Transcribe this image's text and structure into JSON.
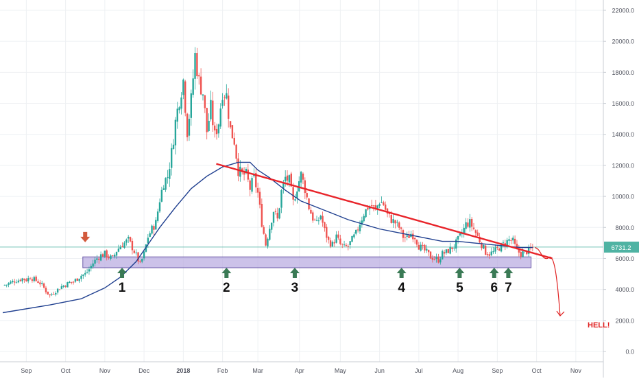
{
  "chart_data": {
    "type": "candlestick",
    "x_labels": [
      "Sep",
      "Oct",
      "Nov",
      "Dec",
      "2018",
      "Feb",
      "Mar",
      "Apr",
      "May",
      "Jun",
      "Jul",
      "Aug",
      "Sep",
      "Oct",
      "Nov"
    ],
    "y_ticks": [
      "0.0",
      "2000.0",
      "4000.0",
      "6000.0",
      "8000.0",
      "10000.0",
      "12000.0",
      "14000.0",
      "16000.0",
      "18000.0",
      "20000.0",
      "22000.0"
    ],
    "ylim": [
      0,
      22000
    ],
    "last_price_label": "6731.2",
    "last_price": 6731.2,
    "colors": {
      "up": "#26a69a",
      "down": "#ef5350",
      "moving_average": "#1f3f8f",
      "trendline": "#e8242a",
      "support_zone": "#b7a8e0",
      "support_zone_border": "#6a5aa8",
      "price_line": "#4fb3a3",
      "arrow_up": "#3a7a55",
      "arrow_down": "#d25a3c",
      "hell": "#e02020"
    },
    "closes": [
      [
        0.0,
        4280
      ],
      [
        0.5,
        4320
      ],
      [
        1,
        4450
      ],
      [
        1.5,
        4550
      ],
      [
        2,
        4600
      ],
      [
        2.5,
        4700
      ],
      [
        3,
        4620
      ],
      [
        3.5,
        4780
      ],
      [
        4,
        4650
      ],
      [
        4.5,
        4500
      ],
      [
        5,
        4300
      ],
      [
        5.5,
        3900
      ],
      [
        6,
        3600
      ],
      [
        6.5,
        3800
      ],
      [
        7,
        4000
      ],
      [
        7.5,
        4200
      ],
      [
        8,
        4300
      ],
      [
        8.5,
        4450
      ],
      [
        9,
        4500
      ],
      [
        9.5,
        4700
      ],
      [
        10,
        4900
      ],
      [
        10.5,
        5000
      ],
      [
        11,
        5300
      ],
      [
        11.5,
        5700
      ],
      [
        12,
        6000
      ],
      [
        12.5,
        6200
      ],
      [
        13,
        6300
      ],
      [
        13.5,
        6100
      ],
      [
        14,
        6000
      ],
      [
        14.5,
        6500
      ],
      [
        15,
        6800
      ],
      [
        15.5,
        7000
      ],
      [
        16,
        7200
      ],
      [
        16.5,
        6700
      ],
      [
        17,
        6200
      ],
      [
        17.5,
        5600
      ],
      [
        18,
        6300
      ],
      [
        18.5,
        7400
      ],
      [
        19,
        7900
      ],
      [
        19.5,
        8300
      ],
      [
        20,
        9800
      ],
      [
        20.5,
        10900
      ],
      [
        21,
        11300
      ],
      [
        21.5,
        12800
      ],
      [
        22,
        14800
      ],
      [
        22.5,
        16300
      ],
      [
        23,
        17500
      ],
      [
        23.5,
        14200
      ],
      [
        24,
        16200
      ],
      [
        24.5,
        19100
      ],
      [
        25,
        17400
      ],
      [
        25.5,
        16700
      ],
      [
        26,
        14200
      ],
      [
        26.5,
        15700
      ],
      [
        27,
        13900
      ],
      [
        27.5,
        14800
      ],
      [
        28,
        16800
      ],
      [
        28.5,
        16500
      ],
      [
        29,
        14300
      ],
      [
        29.5,
        13600
      ],
      [
        30,
        11700
      ],
      [
        30.5,
        11400
      ],
      [
        31,
        11400
      ],
      [
        31.5,
        10500
      ],
      [
        32,
        11200
      ],
      [
        32.5,
        10200
      ],
      [
        33,
        8300
      ],
      [
        33.5,
        6900
      ],
      [
        34,
        8000
      ],
      [
        34.5,
        9100
      ],
      [
        35,
        8500
      ],
      [
        35.5,
        10300
      ],
      [
        36,
        11200
      ],
      [
        36.5,
        11000
      ],
      [
        37,
        9600
      ],
      [
        37.5,
        10600
      ],
      [
        38,
        11400
      ],
      [
        38.5,
        10500
      ],
      [
        39,
        9300
      ],
      [
        39.5,
        8600
      ],
      [
        40,
        8200
      ],
      [
        40.5,
        8800
      ],
      [
        41,
        7800
      ],
      [
        41.5,
        7100
      ],
      [
        42,
        6900
      ],
      [
        42.5,
        7400
      ],
      [
        43,
        6900
      ],
      [
        43.5,
        6700
      ],
      [
        44,
        6800
      ],
      [
        44.5,
        7200
      ],
      [
        45,
        7600
      ],
      [
        45.5,
        8300
      ],
      [
        46,
        8900
      ],
      [
        46.5,
        9300
      ],
      [
        47,
        9400
      ],
      [
        47.5,
        9100
      ],
      [
        48,
        9700
      ],
      [
        48.5,
        9500
      ],
      [
        49,
        8800
      ],
      [
        49.5,
        8500
      ],
      [
        50,
        8300
      ],
      [
        50.5,
        8000
      ],
      [
        51,
        7400
      ],
      [
        51.5,
        7300
      ],
      [
        52,
        7600
      ],
      [
        52.5,
        7400
      ],
      [
        53,
        6800
      ],
      [
        53.5,
        6600
      ],
      [
        54,
        6400
      ],
      [
        54.5,
        6100
      ],
      [
        55,
        6000
      ],
      [
        55.5,
        5900
      ],
      [
        56,
        6300
      ],
      [
        56.5,
        6400
      ],
      [
        57,
        6600
      ],
      [
        57.5,
        6800
      ],
      [
        58,
        7200
      ],
      [
        58.5,
        7600
      ],
      [
        59,
        8200
      ],
      [
        59.5,
        8300
      ],
      [
        60,
        7900
      ],
      [
        60.5,
        7400
      ],
      [
        61,
        6900
      ],
      [
        61.5,
        6400
      ],
      [
        62,
        6300
      ],
      [
        62.5,
        6400
      ],
      [
        63,
        6600
      ],
      [
        63.5,
        6800
      ],
      [
        64,
        7000
      ],
      [
        64.5,
        7200
      ],
      [
        65,
        7100
      ],
      [
        65.5,
        6500
      ],
      [
        66,
        6300
      ],
      [
        66.5,
        6400
      ],
      [
        67,
        6500
      ],
      [
        67.5,
        6700
      ]
    ],
    "moving_average_curve": [
      [
        0,
        2500
      ],
      [
        6,
        3000
      ],
      [
        10,
        3400
      ],
      [
        13,
        4100
      ],
      [
        15,
        4800
      ],
      [
        17,
        5800
      ],
      [
        18.5,
        6900
      ],
      [
        20,
        8000
      ],
      [
        22,
        9300
      ],
      [
        24,
        10500
      ],
      [
        26,
        11300
      ],
      [
        28,
        11900
      ],
      [
        30,
        12200
      ],
      [
        31.5,
        12200
      ],
      [
        32.5,
        11700
      ],
      [
        34,
        11200
      ],
      [
        36,
        10400
      ],
      [
        38,
        9700
      ],
      [
        40,
        9300
      ],
      [
        42,
        8900
      ],
      [
        44,
        8500
      ],
      [
        46,
        8200
      ],
      [
        48,
        7900
      ],
      [
        50,
        7700
      ],
      [
        52,
        7500
      ],
      [
        54,
        7300
      ],
      [
        56,
        7100
      ],
      [
        58,
        7100
      ],
      [
        60,
        7000
      ],
      [
        62,
        6900
      ],
      [
        64,
        6800
      ],
      [
        66,
        6700
      ],
      [
        67.5,
        6700
      ]
    ],
    "support_zone": {
      "from": 5400,
      "to": 6100
    },
    "trendline": {
      "start": [
        27.2,
        12100
      ],
      "end": [
        70,
        6000
      ]
    },
    "forecast_path": [
      [
        67.8,
        6700
      ],
      [
        68.6,
        6200
      ],
      [
        69.4,
        6000
      ],
      [
        70.2,
        5800
      ],
      [
        70.6,
        5000
      ],
      [
        70.8,
        3500
      ],
      [
        71,
        2300
      ]
    ],
    "down_arrow": {
      "x": 10.5,
      "price": 7000
    },
    "support_arrows": [
      {
        "label": "1",
        "x": 15.2
      },
      {
        "label": "2",
        "x": 28.5
      },
      {
        "label": "3",
        "x": 37.2
      },
      {
        "label": "4",
        "x": 50.8
      },
      {
        "label": "5",
        "x": 58.2
      },
      {
        "label": "6",
        "x": 62.6
      },
      {
        "label": "7",
        "x": 64.4
      }
    ],
    "annotation": "HELL!"
  }
}
